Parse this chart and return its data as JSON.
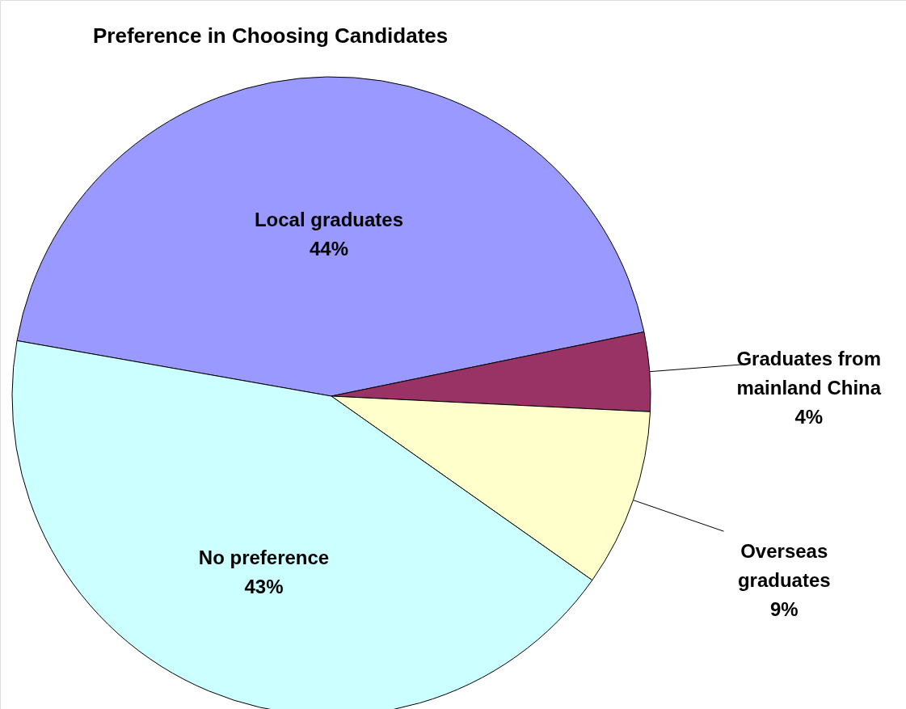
{
  "chart_data": {
    "type": "pie",
    "title": "Preference in Choosing Candidates",
    "categories": [
      "Local graduates",
      "Graduates from mainland China",
      "Overseas graduates",
      "No preference"
    ],
    "values": [
      44,
      4,
      9,
      43
    ],
    "value_labels": [
      "44%",
      "4%",
      "9%",
      "43%"
    ],
    "colors": [
      "#9999ff",
      "#993366",
      "#ffffcc",
      "#ccffff"
    ]
  }
}
